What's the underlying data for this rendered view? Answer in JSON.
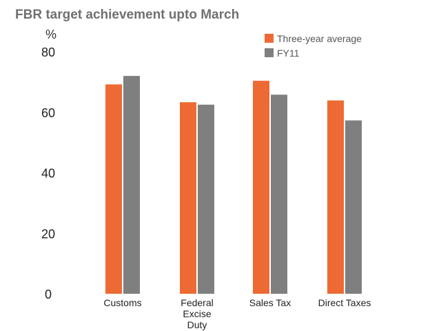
{
  "chart_data": {
    "type": "bar",
    "title": "FBR target achievement upto March",
    "unit_label": "%",
    "categories": [
      "Customs",
      "Federal Excise Duty",
      "Sales Tax",
      "Direct Taxes"
    ],
    "category_lines": [
      [
        "Customs"
      ],
      [
        "Federal",
        "Excise",
        "Duty"
      ],
      [
        "Sales Tax"
      ],
      [
        "Direct Taxes"
      ]
    ],
    "series": [
      {
        "name": "Three-year average",
        "color": "#ee6a35",
        "values": [
          69.2,
          63.3,
          70.4,
          63.9
        ]
      },
      {
        "name": "FY11",
        "color": "#7f7f7f",
        "values": [
          72.0,
          62.5,
          65.8,
          57.3
        ]
      }
    ],
    "ylim": [
      0,
      80
    ],
    "yticks": [
      0,
      20,
      40,
      60,
      80
    ],
    "grid": false,
    "legend_position": "top-right"
  }
}
